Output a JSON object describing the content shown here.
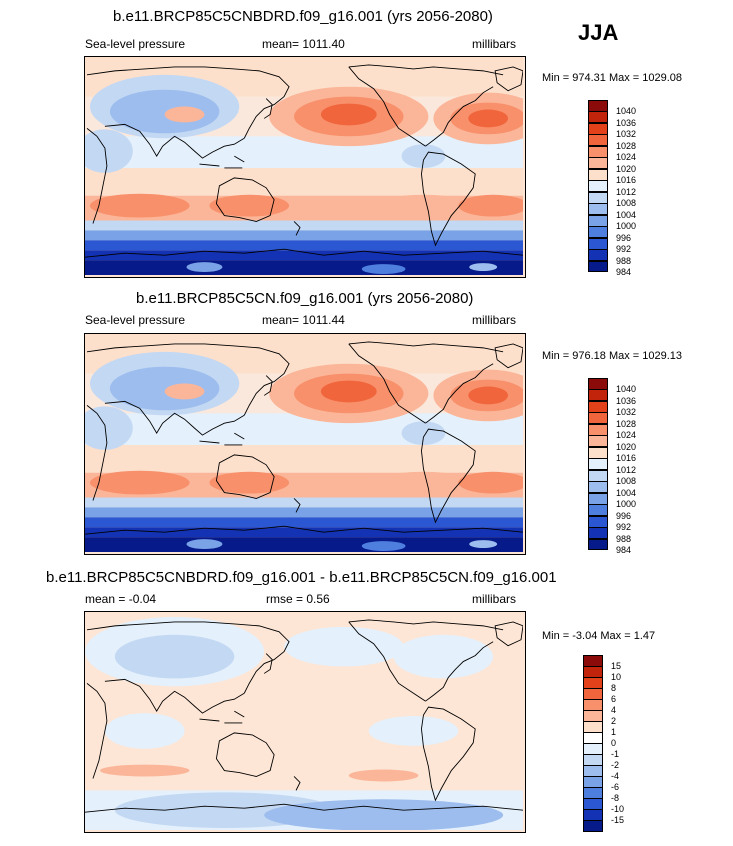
{
  "season": "JJA",
  "chart_data": [
    {
      "type": "heatmap",
      "title": "b.e11.BRCP85C5CNBDRD.f09_g16.001 (yrs 2056-2080)",
      "left_label": "Sea-level pressure",
      "center_label": "mean= 1011.40",
      "right_label": "millibars",
      "minmax": "Min = 974.31 Max = 1029.08",
      "min": 974.31,
      "max": 1029.08,
      "mean": 1011.4,
      "colorbar_levels": [
        "1040",
        "1036",
        "1032",
        "1028",
        "1024",
        "1020",
        "1016",
        "1012",
        "1008",
        "1004",
        "1000",
        "996",
        "992",
        "988",
        "984"
      ],
      "colorbar_colors": [
        "#8b0a0a",
        "#c2230b",
        "#e2411a",
        "#f0653b",
        "#f8906b",
        "#fbb699",
        "#fde0cc",
        "#e4f0fb",
        "#c3d8f3",
        "#9dbdee",
        "#7aa2e7",
        "#4f7fde",
        "#2b57d2",
        "#1433b4",
        "#061a8a"
      ]
    },
    {
      "type": "heatmap",
      "title": "b.e11.BRCP85C5CN.f09_g16.001 (yrs 2056-2080)",
      "left_label": "Sea-level pressure",
      "center_label": "mean= 1011.44",
      "right_label": "millibars",
      "minmax": "Min = 976.18 Max = 1029.13",
      "min": 976.18,
      "max": 1029.13,
      "mean": 1011.44,
      "colorbar_levels": [
        "1040",
        "1036",
        "1032",
        "1028",
        "1024",
        "1020",
        "1016",
        "1012",
        "1008",
        "1004",
        "1000",
        "996",
        "992",
        "988",
        "984"
      ],
      "colorbar_colors": [
        "#8b0a0a",
        "#c2230b",
        "#e2411a",
        "#f0653b",
        "#f8906b",
        "#fbb699",
        "#fde0cc",
        "#e4f0fb",
        "#c3d8f3",
        "#9dbdee",
        "#7aa2e7",
        "#4f7fde",
        "#2b57d2",
        "#1433b4",
        "#061a8a"
      ]
    },
    {
      "type": "heatmap",
      "title": "b.e11.BRCP85C5CNBDRD.f09_g16.001 - b.e11.BRCP85C5CN.f09_g16.001",
      "left_label": "mean =  -0.04",
      "center_label": "rmse =   0.56",
      "right_label": "millibars",
      "minmax": "Min =  -3.04 Max =   1.47",
      "min": -3.04,
      "max": 1.47,
      "mean": -0.04,
      "rmse": 0.56,
      "colorbar_levels": [
        "15",
        "10",
        "8",
        "6",
        "4",
        "2",
        "1",
        "0",
        "-1",
        "-2",
        "-4",
        "-6",
        "-8",
        "-10",
        "-15"
      ],
      "colorbar_colors": [
        "#8b0a0a",
        "#c2230b",
        "#e2411a",
        "#f0653b",
        "#f8906b",
        "#fbb699",
        "#fde0cc",
        "#ffffff",
        "#e4f0fb",
        "#c3d8f3",
        "#9dbdee",
        "#7aa2e7",
        "#4f7fde",
        "#2b57d2",
        "#1433b4",
        "#061a8a"
      ]
    }
  ]
}
